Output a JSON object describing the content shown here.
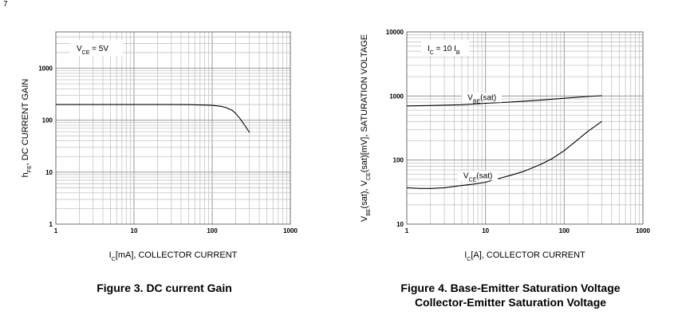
{
  "corner_mark": "7",
  "chart_data": [
    {
      "type": "line",
      "caption": "Figure 3. DC current Gain",
      "xlabel": "I_C[mA], COLLECTOR CURRENT",
      "xlabel_main": "I",
      "xlabel_sub": "C",
      "xlabel_rest": "[mA], COLLECTOR CURRENT",
      "ylabel": "h_FE, DC CURRENT GAIN",
      "ylabel_main": "h",
      "ylabel_sub": "FE",
      "ylabel_rest": ", DC CURRENT GAIN",
      "xscale": "log",
      "yscale": "log",
      "xlim": [
        1,
        1000
      ],
      "ylim": [
        1,
        5000
      ],
      "xticks": [
        "1",
        "10",
        "100",
        "1000"
      ],
      "yticks": [
        "1",
        "10",
        "100",
        "1000"
      ],
      "grid": true,
      "annotations": [
        {
          "main": "V",
          "sub": "CE",
          "rest": " = 5V"
        }
      ],
      "series": [
        {
          "x": [
            1,
            2,
            5,
            10,
            20,
            30,
            50,
            80,
            100,
            130,
            150,
            180,
            200,
            230,
            260,
            300
          ],
          "y": [
            200,
            200,
            200,
            200,
            200,
            200,
            199,
            196,
            193,
            185,
            175,
            155,
            135,
            105,
            80,
            58
          ]
        }
      ]
    },
    {
      "type": "line",
      "caption_lines": [
        "Figure 4. Base-Emitter Saturation Voltage",
        "Collector-Emitter Saturation Voltage"
      ],
      "xlabel": "I_C[A], COLLECTOR CURRENT",
      "xlabel_main": "I",
      "xlabel_sub": "C",
      "xlabel_rest": "[A], COLLECTOR CURRENT",
      "ylabel": "V_BE(sat), V_CE(sat)[mV], SATURATION VOLTAGE",
      "ylabel_parts": [
        {
          "t": "V",
          "sub": false
        },
        {
          "t": "BE",
          "sub": true
        },
        {
          "t": "(sat), V",
          "sub": false
        },
        {
          "t": "CE",
          "sub": true
        },
        {
          "t": "(sat)[mV], SATURATION VOLTAGE",
          "sub": false
        }
      ],
      "xscale": "log",
      "yscale": "log",
      "xlim": [
        1,
        1000
      ],
      "ylim": [
        10,
        10000
      ],
      "xticks": [
        "1",
        "10",
        "100",
        "1000"
      ],
      "yticks": [
        "10",
        "100",
        "1000",
        "10000"
      ],
      "grid": true,
      "annotations": [
        {
          "main": "I",
          "sub": "C",
          "rest": " = 10 I",
          "sub2": "B"
        }
      ],
      "series": [
        {
          "label_main": "V",
          "label_sub": "BE",
          "label_rest": "(sat)",
          "x": [
            1,
            2,
            5,
            10,
            20,
            50,
            100,
            200,
            300
          ],
          "y": [
            700,
            710,
            730,
            770,
            800,
            860,
            920,
            980,
            1010
          ]
        },
        {
          "label_main": "V",
          "label_sub": "CE",
          "label_rest": "(sat)",
          "x": [
            1,
            1.5,
            2,
            3,
            5,
            7,
            10,
            20,
            30,
            50,
            70,
            100,
            150,
            200,
            300
          ],
          "y": [
            37,
            36,
            36,
            37,
            40,
            42,
            45,
            57,
            66,
            85,
            105,
            140,
            210,
            280,
            400
          ]
        }
      ]
    }
  ]
}
